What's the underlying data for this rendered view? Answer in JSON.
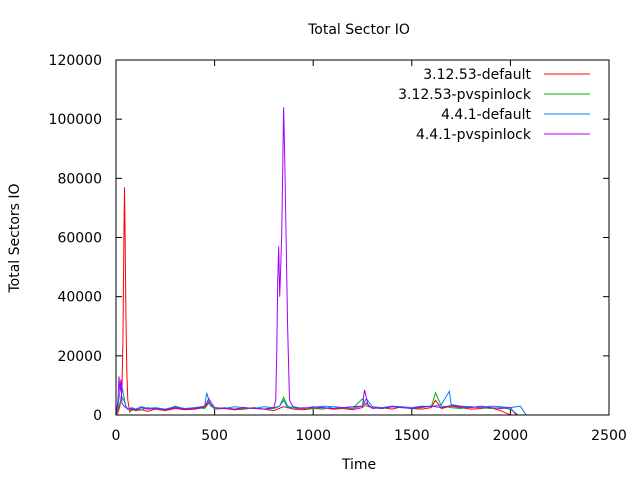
{
  "chart_data": {
    "type": "line",
    "title": "Total Sector IO",
    "xlabel": "Time",
    "ylabel": "Total Sectors IO",
    "xlim": [
      0,
      2500
    ],
    "ylim": [
      0,
      120000
    ],
    "xticks": [
      0,
      500,
      1000,
      1500,
      2000,
      2500
    ],
    "yticks": [
      0,
      20000,
      40000,
      60000,
      80000,
      100000,
      120000
    ],
    "legend_position": "top-right",
    "series": [
      {
        "name": "3.12.53-default",
        "color": "#ff0000",
        "x": [
          0,
          10,
          20,
          30,
          35,
          40,
          43,
          46,
          50,
          55,
          60,
          70,
          80,
          100,
          130,
          160,
          200,
          250,
          300,
          350,
          400,
          450,
          470,
          500,
          550,
          600,
          650,
          700,
          750,
          800,
          850,
          900,
          950,
          1000,
          1050,
          1100,
          1150,
          1200,
          1250,
          1270,
          1300,
          1350,
          1400,
          1450,
          1500,
          1550,
          1600,
          1620,
          1650,
          1700,
          1750,
          1800,
          1850,
          1900,
          1950,
          2000
        ],
        "y": [
          0,
          800,
          3000,
          8000,
          25000,
          60000,
          77000,
          61000,
          35000,
          15000,
          5000,
          1000,
          2000,
          1500,
          1800,
          1200,
          2000,
          1500,
          2200,
          1800,
          2000,
          2500,
          4500,
          2000,
          2200,
          1800,
          2000,
          2500,
          2000,
          1500,
          2800,
          2000,
          1800,
          2200,
          2500,
          2000,
          2200,
          1800,
          2500,
          4000,
          2200,
          2500,
          2000,
          2800,
          2200,
          2000,
          2500,
          5000,
          2200,
          3000,
          2500,
          2000,
          2200,
          2500,
          1500,
          0
        ]
      },
      {
        "name": "3.12.53-pvspinlock",
        "color": "#00b000",
        "x": [
          0,
          10,
          20,
          30,
          40,
          50,
          60,
          80,
          100,
          130,
          160,
          200,
          250,
          300,
          350,
          400,
          450,
          470,
          500,
          550,
          600,
          650,
          700,
          750,
          800,
          830,
          850,
          870,
          900,
          950,
          1000,
          1050,
          1100,
          1150,
          1200,
          1250,
          1270,
          1300,
          1350,
          1400,
          1450,
          1500,
          1550,
          1600,
          1620,
          1650,
          1700,
          1750,
          1800,
          1850,
          1900,
          1950,
          2000,
          2040
        ],
        "y": [
          0,
          2000,
          4000,
          6000,
          5000,
          3000,
          2000,
          1500,
          2000,
          1800,
          2500,
          2000,
          1800,
          3000,
          2000,
          2500,
          2200,
          4000,
          2000,
          2500,
          2000,
          2200,
          2500,
          2000,
          2200,
          3000,
          6000,
          3000,
          2000,
          2500,
          2200,
          2000,
          2800,
          2500,
          2200,
          5500,
          3000,
          2500,
          2200,
          2800,
          2500,
          2200,
          2500,
          3000,
          7500,
          3000,
          2500,
          2200,
          2800,
          2500,
          2200,
          2500,
          2000,
          0
        ]
      },
      {
        "name": "4.4.1-default",
        "color": "#0080ff",
        "x": [
          0,
          10,
          20,
          30,
          40,
          50,
          60,
          80,
          100,
          130,
          160,
          200,
          250,
          300,
          350,
          400,
          450,
          460,
          480,
          500,
          550,
          600,
          650,
          700,
          750,
          800,
          830,
          850,
          870,
          900,
          950,
          1000,
          1050,
          1100,
          1150,
          1200,
          1250,
          1270,
          1300,
          1350,
          1400,
          1450,
          1500,
          1550,
          1600,
          1650,
          1690,
          1700,
          1750,
          1800,
          1850,
          1900,
          1950,
          2000,
          2050,
          2080
        ],
        "y": [
          0,
          3000,
          8000,
          10000,
          6000,
          3000,
          2000,
          2500,
          2000,
          2800,
          2200,
          2500,
          2000,
          2800,
          2200,
          2500,
          3000,
          7500,
          3000,
          2500,
          2200,
          2800,
          2500,
          2200,
          2800,
          2500,
          3000,
          5000,
          2500,
          2800,
          2200,
          2500,
          3000,
          2800,
          2500,
          2200,
          3000,
          5500,
          2800,
          2500,
          3000,
          2800,
          2500,
          3000,
          2800,
          3500,
          8000,
          3500,
          3000,
          2800,
          2500,
          3000,
          2800,
          2500,
          3000,
          0
        ]
      },
      {
        "name": "4.4.1-pvspinlock",
        "color": "#a000ff",
        "x": [
          0,
          10,
          15,
          20,
          25,
          30,
          40,
          50,
          60,
          80,
          100,
          130,
          160,
          200,
          250,
          300,
          350,
          400,
          450,
          470,
          500,
          550,
          600,
          650,
          700,
          750,
          800,
          810,
          815,
          820,
          825,
          830,
          835,
          840,
          845,
          850,
          855,
          860,
          865,
          870,
          880,
          900,
          950,
          1000,
          1050,
          1100,
          1150,
          1200,
          1250,
          1260,
          1280,
          1300,
          1350,
          1400,
          1450,
          1500,
          1550,
          1600,
          1650,
          1700,
          1750,
          1800,
          1850,
          1900,
          1950,
          2000,
          2030
        ],
        "y": [
          0,
          5000,
          13000,
          8000,
          12000,
          4000,
          3000,
          2500,
          2000,
          2200,
          1800,
          2500,
          2000,
          2200,
          1800,
          2500,
          2000,
          2200,
          2800,
          5500,
          2500,
          2200,
          2000,
          2500,
          2200,
          2000,
          2500,
          5000,
          20000,
          45000,
          57000,
          40000,
          50000,
          60000,
          80000,
          104000,
          89000,
          70000,
          50000,
          30000,
          5000,
          2500,
          2200,
          2800,
          2500,
          2200,
          2500,
          2800,
          3000,
          8500,
          3000,
          2500,
          2200,
          2800,
          2500,
          2200,
          2800,
          3000,
          2500,
          3200,
          2800,
          2500,
          3000,
          2500,
          2200,
          2500,
          0
        ]
      }
    ]
  }
}
